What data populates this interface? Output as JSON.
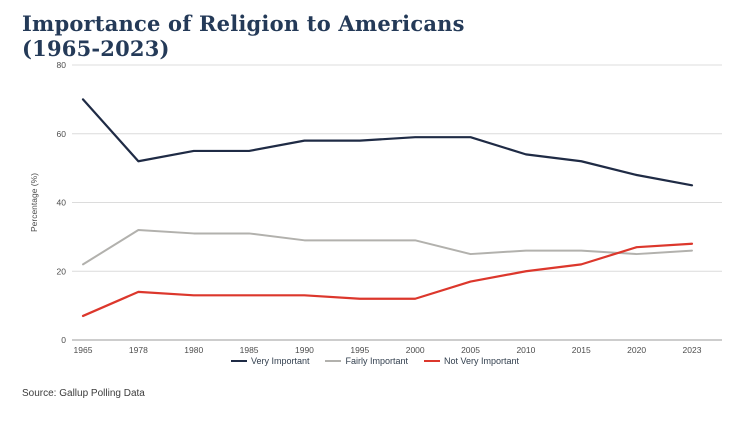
{
  "page": {
    "title_line1": "Importance of Religion to Americans",
    "title_line2": "(1965-2023)",
    "source": "Source: Gallup Polling Data"
  },
  "colors": {
    "title": "#243a58",
    "grid": "#dcdcdc",
    "axis": "#9b9b9b",
    "tick_text": "#4d4d4d",
    "legend_text": "#33404f"
  },
  "chart_data": {
    "type": "line",
    "title": "Importance of Religion to Americans (1965-2023)",
    "categories": [
      "1965",
      "1978",
      "1980",
      "1985",
      "1990",
      "1995",
      "2000",
      "2005",
      "2010",
      "2015",
      "2020",
      "2023"
    ],
    "series": [
      {
        "name": "Very Important",
        "color": "#1f2b45",
        "width": 2.2,
        "values": [
          70,
          52,
          55,
          55,
          58,
          58,
          59,
          59,
          54,
          52,
          48,
          45
        ]
      },
      {
        "name": "Fairly Important",
        "color": "#b2b1ad",
        "width": 2.0,
        "values": [
          22,
          32,
          31,
          31,
          29,
          29,
          29,
          25,
          26,
          26,
          25,
          26
        ]
      },
      {
        "name": "Not Very Important",
        "color": "#dc372c",
        "width": 2.2,
        "values": [
          7,
          14,
          13,
          13,
          13,
          12,
          12,
          17,
          20,
          22,
          27,
          28
        ]
      }
    ],
    "xlabel": "",
    "ylabel": "Percentage (%)",
    "ylim": [
      0,
      80
    ],
    "yticks": [
      0,
      20,
      40,
      60,
      80
    ],
    "grid": true,
    "legend_position": "bottom"
  }
}
